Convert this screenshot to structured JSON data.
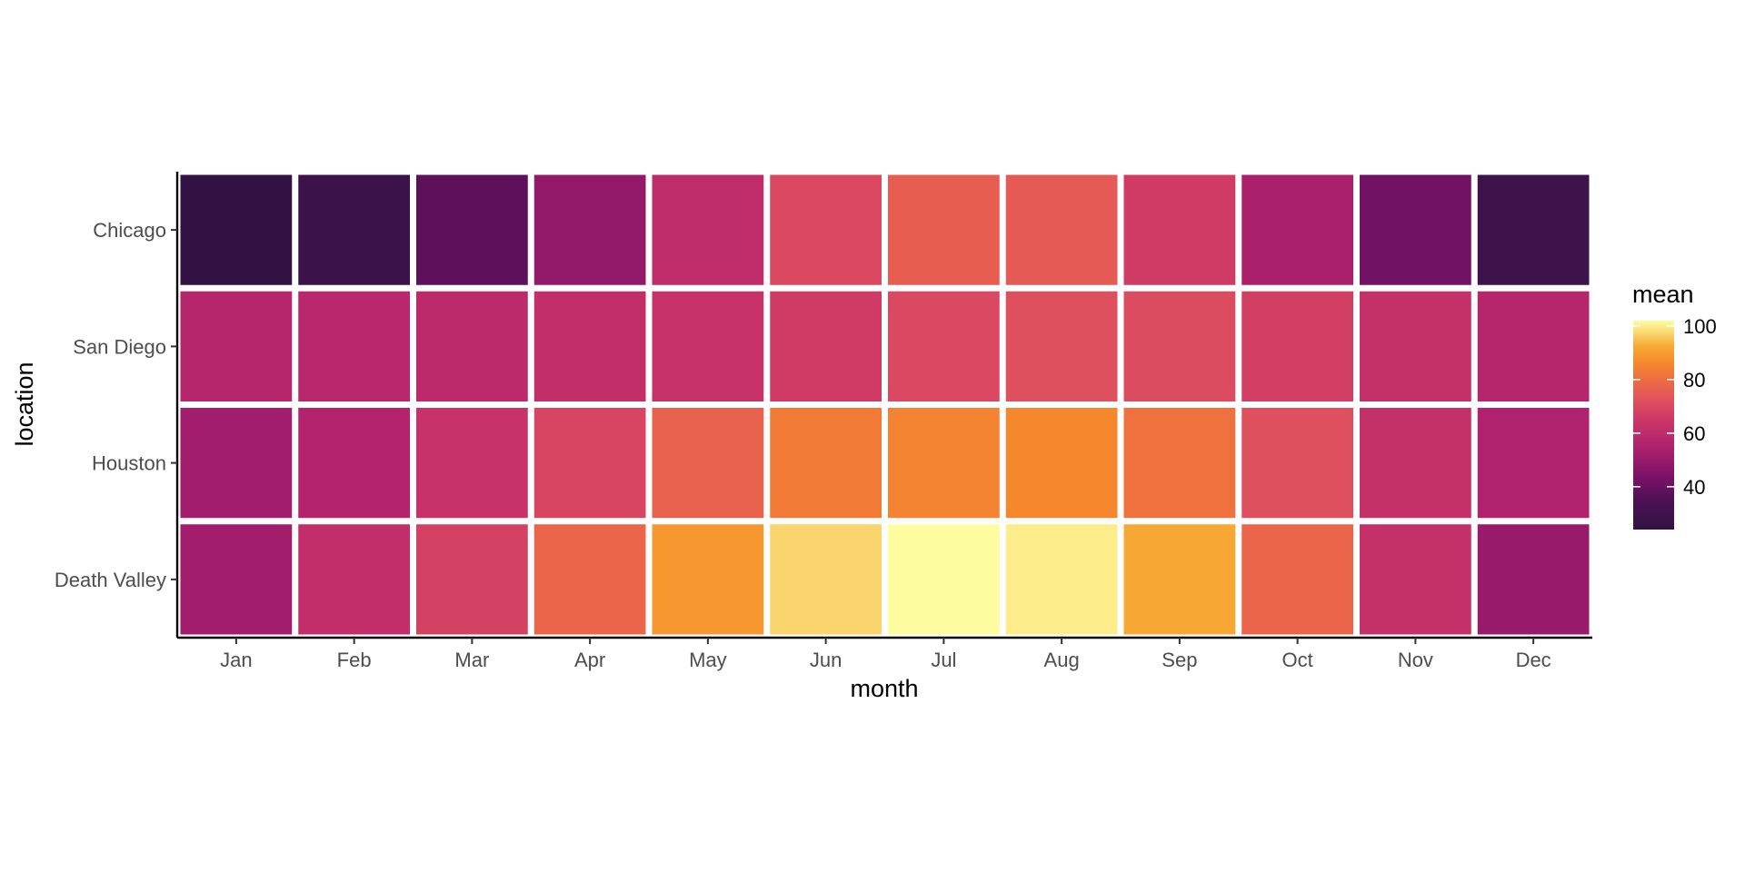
{
  "chart_data": {
    "type": "heatmap",
    "title": "",
    "xlabel": "month",
    "ylabel": "location",
    "x_categories": [
      "Jan",
      "Feb",
      "Mar",
      "Apr",
      "May",
      "Jun",
      "Jul",
      "Aug",
      "Sep",
      "Oct",
      "Nov",
      "Dec"
    ],
    "y_categories": [
      "Chicago",
      "San Diego",
      "Houston",
      "Death Valley"
    ],
    "values": [
      [
        24,
        28,
        38,
        49,
        60,
        70,
        76,
        75,
        66,
        54,
        42,
        29
      ],
      [
        57,
        58,
        59,
        61,
        63,
        66,
        70,
        72,
        71,
        67,
        62,
        57
      ],
      [
        52,
        56,
        63,
        69,
        77,
        83,
        85,
        86,
        81,
        72,
        62,
        55
      ],
      [
        52,
        61,
        68,
        78,
        89,
        97,
        102,
        100,
        92,
        78,
        62,
        50
      ]
    ],
    "legend": {
      "title": "mean",
      "range": [
        24,
        102
      ],
      "ticks": [
        40,
        60,
        80,
        100
      ],
      "position": "right"
    },
    "colorscale": "inferno",
    "grid": false
  }
}
